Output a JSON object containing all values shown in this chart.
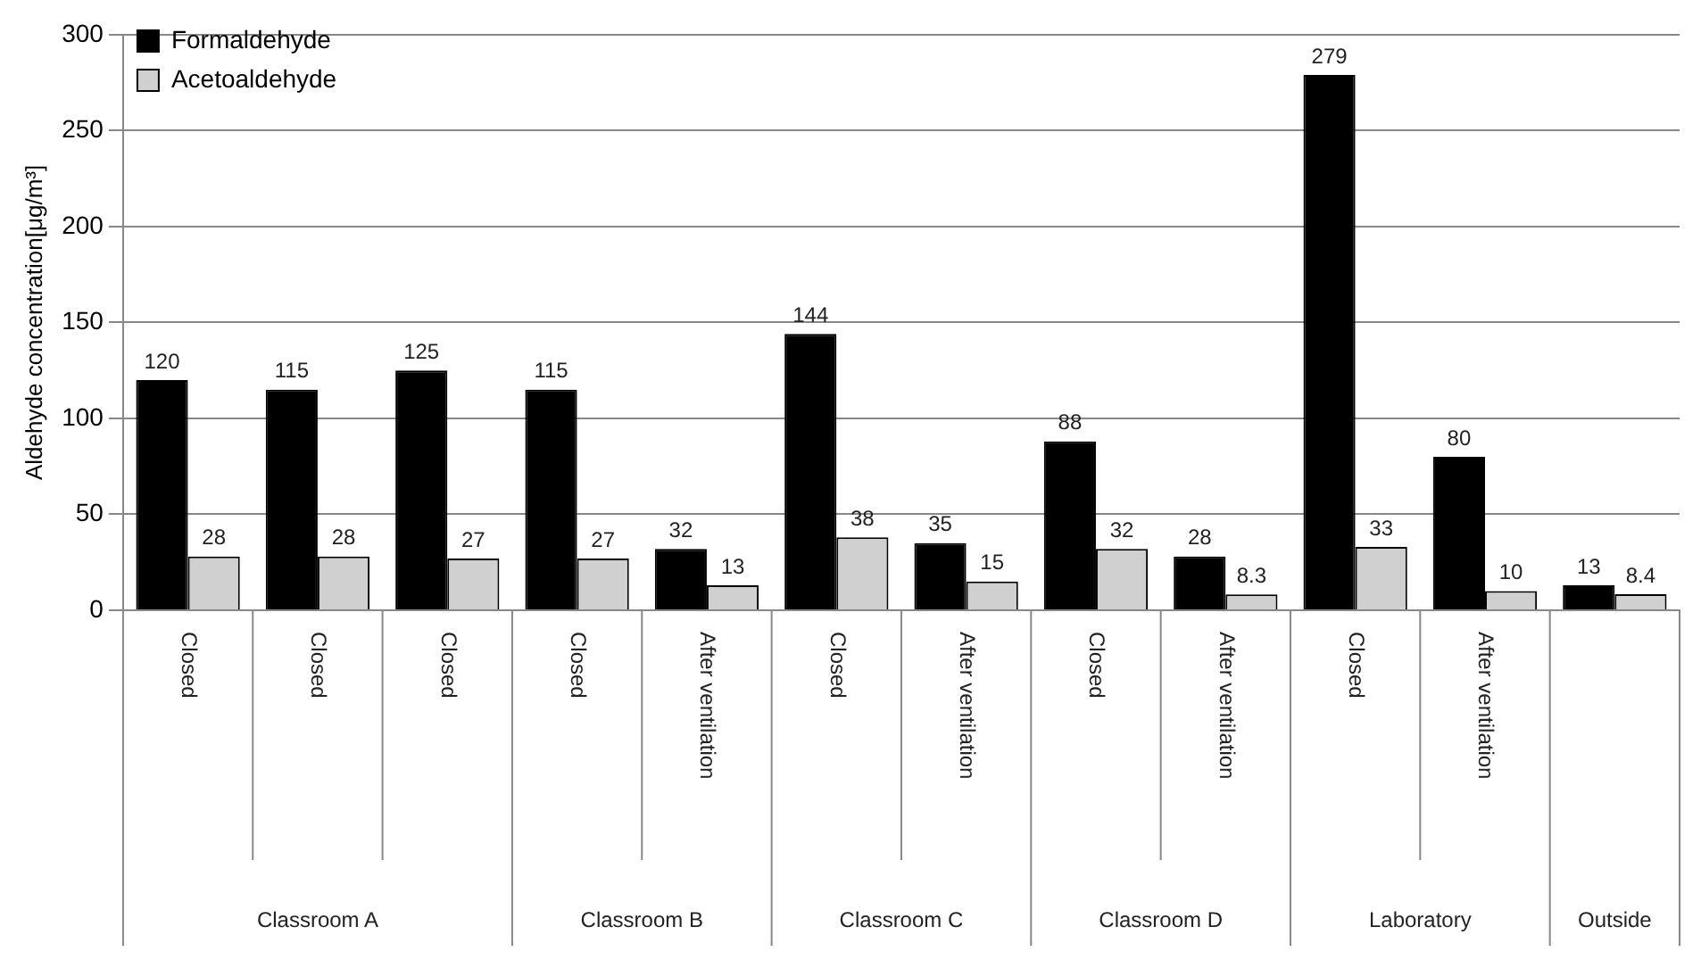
{
  "chart_data": {
    "type": "bar",
    "ylabel": "Aldehyde concentration[μg/m³]",
    "categories": [
      "Closed",
      "Closed",
      "Closed",
      "Closed",
      "After ventilation",
      "Closed",
      "After ventilation",
      "Closed",
      "After ventilation",
      "Closed",
      "After ventilation",
      null
    ],
    "series": [
      {
        "name": "Formaldehyde",
        "color": "#000000",
        "values": [
          120,
          115,
          125,
          115,
          32,
          144,
          35,
          88,
          28,
          279,
          80,
          13
        ]
      },
      {
        "name": "Acetoaldehyde",
        "color": "#d0d0d0",
        "values": [
          28,
          28,
          27,
          27,
          13,
          38,
          15,
          32,
          8.3,
          33,
          10,
          8.4
        ]
      }
    ],
    "ylim": [
      0,
      300
    ],
    "yticks": [
      0,
      50,
      100,
      150,
      200,
      250,
      300
    ],
    "grid": "y",
    "legend": "top left",
    "data_labels": true,
    "annotations": [
      "Classroom A",
      "Classroom B",
      "Classroom C",
      "Classroom D",
      "Laboratory",
      "Outside"
    ]
  }
}
